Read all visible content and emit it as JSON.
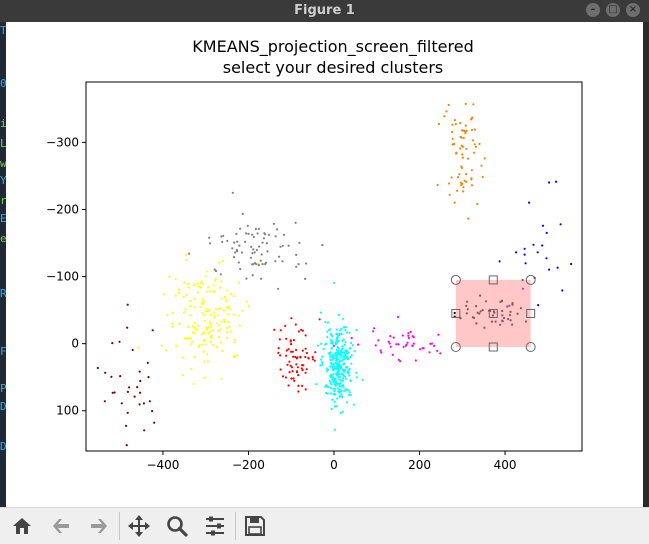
{
  "window": {
    "title": "Figure 1",
    "buttons": [
      "minimize-button",
      "maximize-button",
      "close-button"
    ]
  },
  "terminal": {
    "chars": [
      {
        "text": "T",
        "color": "#3ba3ff"
      },
      {
        "text": "0",
        "color": "#3ba3ff"
      },
      {
        "text": "i",
        "color": "#7fd14a"
      },
      {
        "text": "L",
        "color": "#7fd14a"
      },
      {
        "text": "w",
        "color": "#7fd14a"
      },
      {
        "text": "Y",
        "color": "#3ba3ff"
      },
      {
        "text": "r",
        "color": "#7fd14a"
      },
      {
        "text": "E",
        "color": "#3ba3ff"
      },
      {
        "text": "e",
        "color": "#7fd14a"
      },
      {
        "text": "R",
        "color": "#3ba3ff"
      },
      {
        "text": "F",
        "color": "#3ba3ff"
      },
      {
        "text": "P",
        "color": "#3ba3ff"
      },
      {
        "text": "D",
        "color": "#3ba3ff"
      },
      {
        "text": "D",
        "color": "#3ba3ff"
      }
    ]
  },
  "toolbar": {
    "icons": [
      "home-icon",
      "back-arrow-icon",
      "forward-arrow-icon",
      "pan-icon",
      "zoom-icon",
      "configure-subplots-icon",
      "save-icon"
    ]
  },
  "chart_data": {
    "type": "scatter",
    "title": "KMEANS_projection_screen_filtered",
    "subtitle": "select your desired clusters",
    "xlabel": "",
    "ylabel": "",
    "xlim": [
      -580,
      580
    ],
    "ylim": [
      160,
      -390
    ],
    "y_inverted": true,
    "xticks": [
      -400,
      -200,
      0,
      200,
      400
    ],
    "yticks": [
      -300,
      -200,
      -100,
      0,
      100
    ],
    "grid": false,
    "legend": "none",
    "clusters": [
      {
        "color": "#800000",
        "cx": -470,
        "cy": 60,
        "sx": 40,
        "sy": 45,
        "n": 32
      },
      {
        "color": "#ffff00",
        "cx": -300,
        "cy": -40,
        "sx": 45,
        "sy": 40,
        "n": 170
      },
      {
        "color": "#808080",
        "cx": -180,
        "cy": -140,
        "sx": 55,
        "sy": 25,
        "n": 80
      },
      {
        "color": "#ff0000",
        "cx": -90,
        "cy": 20,
        "sx": 25,
        "sy": 22,
        "n": 70
      },
      {
        "color": "#00ffff",
        "cx": 10,
        "cy": 30,
        "sx": 18,
        "sy": 30,
        "n": 300
      },
      {
        "color": "#ff00ff",
        "cx": 160,
        "cy": 0,
        "sx": 55,
        "sy": 14,
        "n": 45
      },
      {
        "color": "#ff8000",
        "cx": 300,
        "cy": -280,
        "sx": 22,
        "sy": 40,
        "n": 70
      },
      {
        "color": "#0000ff",
        "cx": 460,
        "cy": -140,
        "sx": 40,
        "sy": 55,
        "n": 25
      },
      {
        "color": "#000000",
        "cx": 360,
        "cy": -45,
        "sx": 40,
        "sy": 12,
        "n": 45
      }
    ],
    "selection": {
      "x0": 285,
      "x1": 460,
      "y0": 5,
      "y1": -95,
      "fill": "#ff9999",
      "alpha": 0.55
    }
  }
}
